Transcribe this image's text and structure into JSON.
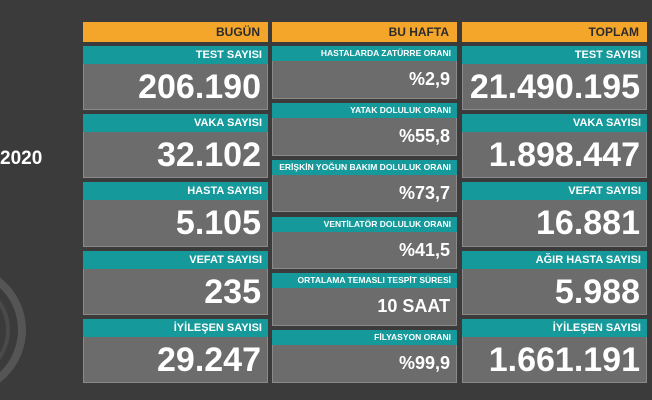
{
  "side_text": "2020",
  "columns": [
    {
      "header": "BUGÜN",
      "items": [
        {
          "label": "TEST SAYISI",
          "value": "206.190"
        },
        {
          "label": "VAKA SAYISI",
          "value": "32.102"
        },
        {
          "label": "HASTA SAYISI",
          "value": "5.105"
        },
        {
          "label": "VEFAT SAYISI",
          "value": "235"
        },
        {
          "label": "İYİLEŞEN SAYISI",
          "value": "29.247"
        }
      ]
    },
    {
      "header": "BU HAFTA",
      "items": [
        {
          "label": "HASTALARDA ZATÜRRE ORANI",
          "value": "%2,9"
        },
        {
          "label": "YATAK DOLULUK ORANI",
          "value": "%55,8"
        },
        {
          "label": "ERİŞKİN YOĞUN BAKIM DOLULUK ORANI",
          "value": "%73,7"
        },
        {
          "label": "VENTİLATÖR DOLULUK ORANI",
          "value": "%41,5"
        },
        {
          "label": "ORTALAMA TEMASLI TESPİT SÜRESİ",
          "value": "10 SAAT"
        },
        {
          "label": "FİLYASYON ORANI",
          "value": "%99,9"
        }
      ]
    },
    {
      "header": "TOPLAM",
      "items": [
        {
          "label": "TEST SAYISI",
          "value": "21.490.195"
        },
        {
          "label": "VAKA SAYISI",
          "value": "1.898.447"
        },
        {
          "label": "VEFAT SAYISI",
          "value": "16.881"
        },
        {
          "label": "AĞIR HASTA SAYISI",
          "value": "5.988"
        },
        {
          "label": "İYİLEŞEN SAYISI",
          "value": "1.661.191"
        }
      ]
    }
  ]
}
